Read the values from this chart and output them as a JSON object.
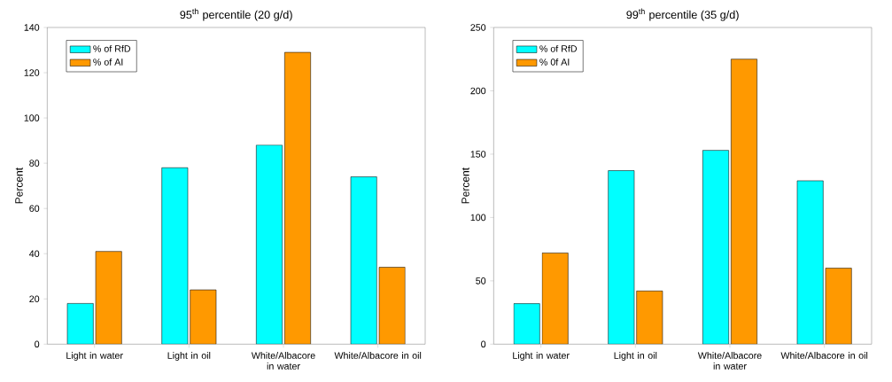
{
  "chart_data": [
    {
      "type": "bar",
      "title": "95$^{th}$ percentile (20 g/d)",
      "ylabel": "Percent",
      "categories": [
        "Light in water",
        "Light in oil",
        "White/Albacore in water",
        "White/Albacore in oil"
      ],
      "series": [
        {
          "name": "% of RfD",
          "color": "#00ffff",
          "values": [
            18,
            78,
            88,
            74
          ]
        },
        {
          "name": "% of AI",
          "color": "#ff9900",
          "values": [
            41,
            24,
            129,
            34
          ]
        }
      ],
      "ylim": [
        0,
        140
      ],
      "yticks": [
        0,
        20,
        40,
        60,
        80,
        100,
        120,
        140
      ],
      "legend": "top left"
    },
    {
      "type": "bar",
      "title": "99$^{th}$ percentile (35 g/d)",
      "ylabel": "Percent",
      "categories": [
        "Light in water",
        "Light in oil",
        "White/Albacore in water",
        "White/Albacore in oil"
      ],
      "series": [
        {
          "name": "% of RfD",
          "color": "#00ffff",
          "values": [
            32,
            137,
            153,
            129
          ]
        },
        {
          "name": "% 0f AI",
          "color": "#ff9900",
          "values": [
            72,
            42,
            225,
            60
          ]
        }
      ],
      "ylim": [
        0,
        250
      ],
      "yticks": [
        0,
        50,
        100,
        150,
        200,
        250
      ],
      "legend": "top left"
    }
  ]
}
